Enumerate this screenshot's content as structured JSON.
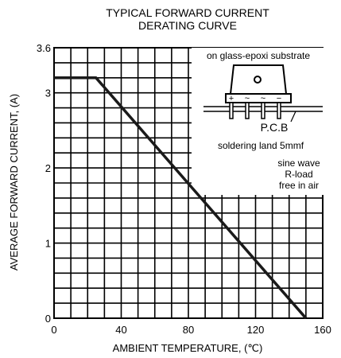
{
  "chart_data": {
    "type": "line",
    "title_line1": "TYPICAL FORWARD CURRENT",
    "title_line2": "DERATING CURVE",
    "xlabel": "AMBIENT TEMPERATURE, (℃)",
    "ylabel": "AVERAGE FORWARD CURRENT, (A)",
    "xlim": [
      0,
      160
    ],
    "ylim": [
      0,
      3.6
    ],
    "x_ticks": [
      {
        "value": 0,
        "label": "0"
      },
      {
        "value": 40,
        "label": "40"
      },
      {
        "value": 80,
        "label": "80"
      },
      {
        "value": 120,
        "label": "120"
      },
      {
        "value": 160,
        "label": "160"
      }
    ],
    "y_ticks": [
      {
        "value": 0,
        "label": "0"
      },
      {
        "value": 1,
        "label": "1"
      },
      {
        "value": 2,
        "label": "2"
      },
      {
        "value": 3,
        "label": "3"
      },
      {
        "value": 3.6,
        "label": "3.6"
      }
    ],
    "grid": true,
    "grid_x_step": 10,
    "grid_y_step": 0.2,
    "series": [
      {
        "x": [
          0,
          25,
          150
        ],
        "y": [
          3.2,
          3.2,
          0
        ],
        "color": "#1a1a1a"
      }
    ],
    "annotations": {
      "substrate": "on glass-epoxi substrate",
      "pcb": "P.C.B",
      "soldering": "soldering land 5mmf",
      "waveform_lines": [
        "sine wave",
        "R-load",
        "free in air"
      ],
      "terminal_marks": [
        "+",
        "~",
        "~",
        "−"
      ]
    }
  }
}
